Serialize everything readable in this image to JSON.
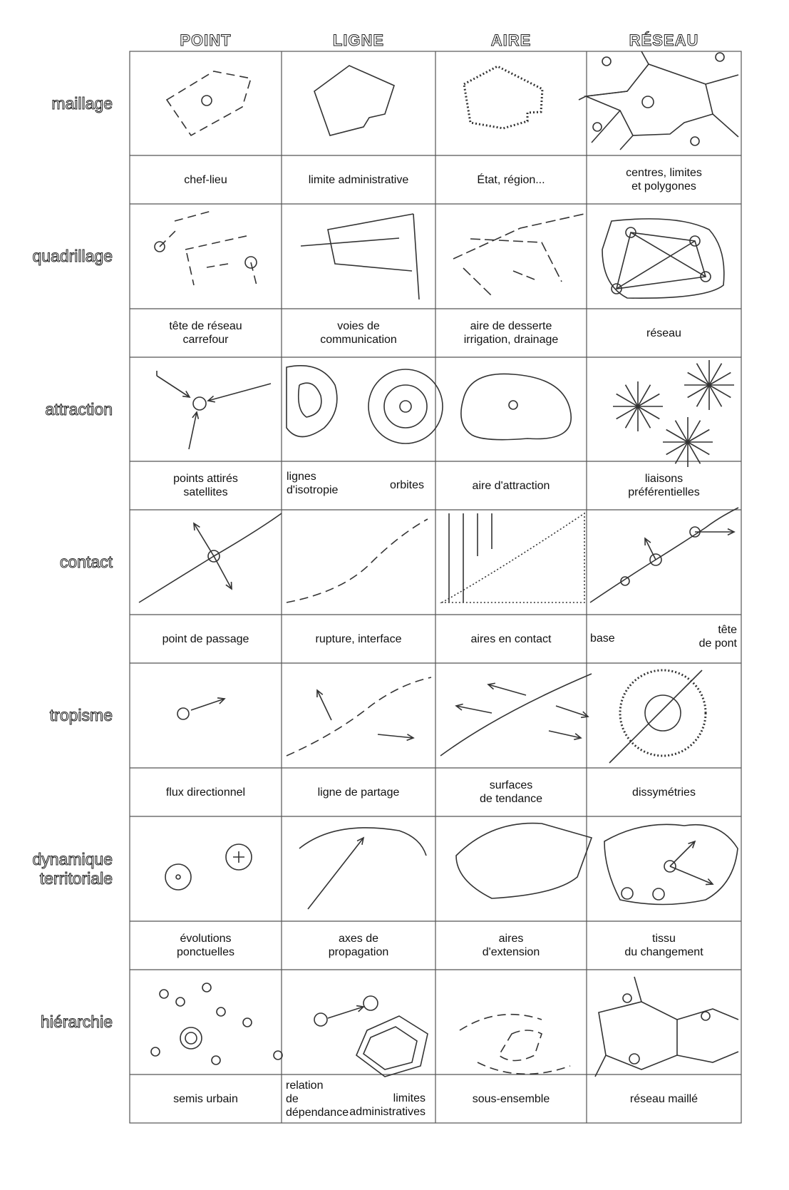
{
  "columns": [
    "POINT",
    "LIGNE",
    "AIRE",
    "RÉSEAU"
  ],
  "rows": [
    {
      "label": "maillage",
      "captions": [
        "chef-lieu",
        "limite administrative",
        "État, région...",
        "centres, limites\net polygones"
      ]
    },
    {
      "label": "quadrillage",
      "captions": [
        "tête de réseau\ncarrefour",
        "voies de\ncommunication",
        "aire de desserte\nirrigation, drainage",
        "réseau"
      ]
    },
    {
      "label": "attraction",
      "captions": [
        "points attirés\nsatellites",
        "",
        "aire d'attraction",
        "liaisons\npréférentielles"
      ]
    },
    {
      "label": "contact",
      "captions": [
        "point de passage",
        "rupture, interface",
        "aires en contact",
        ""
      ]
    },
    {
      "label": "tropisme",
      "captions": [
        "flux directionnel",
        "ligne de partage",
        "surfaces\nde tendance",
        "dissymétries"
      ]
    },
    {
      "label": "dynamique\nterritoriale",
      "captions": [
        "évolutions\nponctuelles",
        "axes de\npropagation",
        "aires\nd'extension",
        "tissu\ndu changement"
      ]
    },
    {
      "label": "hiérarchie",
      "captions": [
        "semis urbain",
        "",
        "sous-ensemble",
        "réseau maillé"
      ]
    }
  ],
  "split_captions": {
    "isotropie": "lignes\nd'isotropie",
    "orbites": "orbites",
    "base": "base",
    "tete_de_pont": "tête\nde pont",
    "relation": "relation\nde dépendance",
    "limites": "limites\nadministratives"
  },
  "colors": {
    "line": "#333333",
    "fill": "#ffffff"
  }
}
